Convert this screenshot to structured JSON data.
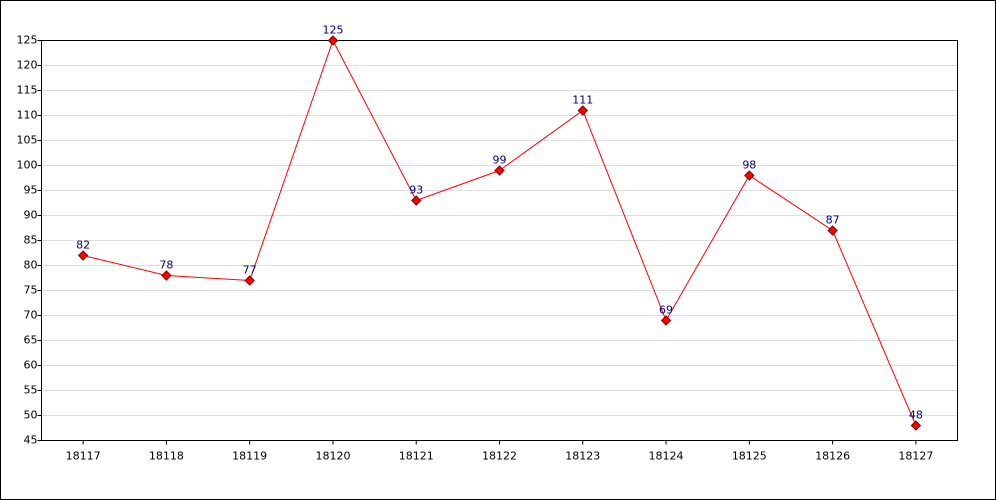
{
  "chart_data": {
    "type": "line",
    "categories": [
      "18117",
      "18118",
      "18119",
      "18120",
      "18121",
      "18122",
      "18123",
      "18124",
      "18125",
      "18126",
      "18127"
    ],
    "series": [
      {
        "color": "#ff0000",
        "values": [
          82,
          78,
          77,
          125,
          93,
          99,
          111,
          69,
          98,
          87,
          48
        ]
      }
    ],
    "ylim": [
      45,
      125
    ],
    "yticks": [
      45,
      50,
      55,
      60,
      65,
      70,
      75,
      80,
      85,
      90,
      95,
      100,
      105,
      110,
      115,
      120,
      125
    ],
    "grid": true
  }
}
